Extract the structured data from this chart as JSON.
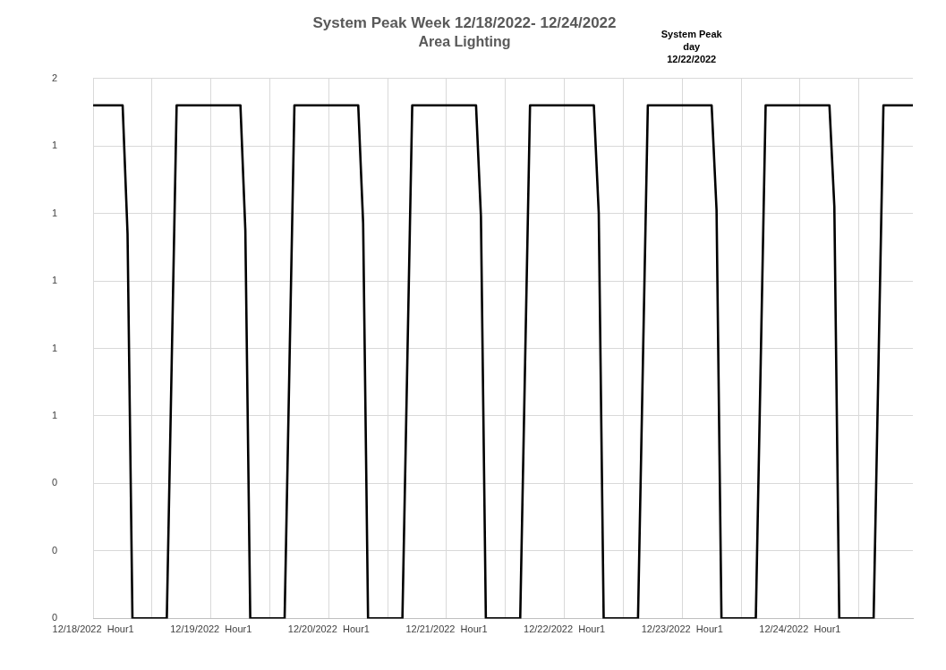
{
  "chart_data": {
    "type": "line",
    "title": "System Peak Week 12/18/2022- 12/24/2022",
    "subtitle": "Area Lighting",
    "annotations": [
      "System Peak day 12/22/2022"
    ],
    "categories": [
      "12/18/2022  Hour1",
      null,
      null,
      null,
      null,
      null,
      null,
      null,
      null,
      null,
      null,
      null,
      null,
      null,
      null,
      null,
      null,
      null,
      null,
      null,
      null,
      null,
      null,
      null,
      "12/19/2022  Hour1",
      null,
      null,
      null,
      null,
      null,
      null,
      null,
      null,
      null,
      null,
      null,
      null,
      null,
      null,
      null,
      null,
      null,
      null,
      null,
      null,
      null,
      null,
      null,
      "12/20/2022  Hour1",
      null,
      null,
      null,
      null,
      null,
      null,
      null,
      null,
      null,
      null,
      null,
      null,
      null,
      null,
      null,
      null,
      null,
      null,
      null,
      null,
      null,
      null,
      null,
      "12/21/2022  Hour1",
      null,
      null,
      null,
      null,
      null,
      null,
      null,
      null,
      null,
      null,
      null,
      null,
      null,
      null,
      null,
      null,
      null,
      null,
      null,
      null,
      null,
      null,
      null,
      "12/22/2022  Hour1",
      null,
      null,
      null,
      null,
      null,
      null,
      null,
      null,
      null,
      null,
      null,
      null,
      null,
      null,
      null,
      null,
      null,
      null,
      null,
      null,
      null,
      null,
      null,
      "12/23/2022  Hour1",
      null,
      null,
      null,
      null,
      null,
      null,
      null,
      null,
      null,
      null,
      null,
      null,
      null,
      null,
      null,
      null,
      null,
      null,
      null,
      null,
      null,
      null,
      null,
      "12/24/2022  Hour1",
      null,
      null,
      null,
      null,
      null,
      null,
      null,
      null,
      null,
      null,
      null,
      null,
      null,
      null,
      null,
      null,
      null,
      null,
      null,
      null,
      null,
      null,
      null
    ],
    "series": [
      {
        "color": "#000000",
        "values": [
          1.52,
          1.52,
          1.52,
          1.52,
          1.52,
          1.52,
          1.52,
          1.14,
          0,
          0,
          0,
          0,
          0,
          0,
          0,
          0,
          0.76,
          1.52,
          1.52,
          1.52,
          1.52,
          1.52,
          1.52,
          1.52,
          1.52,
          1.52,
          1.52,
          1.52,
          1.52,
          1.52,
          1.52,
          1.15,
          0,
          0,
          0,
          0,
          0,
          0,
          0,
          0,
          0.76,
          1.52,
          1.52,
          1.52,
          1.52,
          1.52,
          1.52,
          1.52,
          1.52,
          1.52,
          1.52,
          1.52,
          1.52,
          1.52,
          1.52,
          1.17,
          0,
          0,
          0,
          0,
          0,
          0,
          0,
          0,
          0.76,
          1.52,
          1.52,
          1.52,
          1.52,
          1.52,
          1.52,
          1.52,
          1.52,
          1.52,
          1.52,
          1.52,
          1.52,
          1.52,
          1.52,
          1.19,
          0,
          0,
          0,
          0,
          0,
          0,
          0,
          0,
          0.76,
          1.52,
          1.52,
          1.52,
          1.52,
          1.52,
          1.52,
          1.52,
          1.52,
          1.52,
          1.52,
          1.52,
          1.52,
          1.52,
          1.52,
          1.2,
          0,
          0,
          0,
          0,
          0,
          0,
          0,
          0,
          0.76,
          1.52,
          1.52,
          1.52,
          1.52,
          1.52,
          1.52,
          1.52,
          1.52,
          1.52,
          1.52,
          1.52,
          1.52,
          1.52,
          1.52,
          1.21,
          0,
          0,
          0,
          0,
          0,
          0,
          0,
          0,
          0.76,
          1.52,
          1.52,
          1.52,
          1.52,
          1.52,
          1.52,
          1.52,
          1.52,
          1.52,
          1.52,
          1.52,
          1.52,
          1.52,
          1.52,
          1.22,
          0,
          0,
          0,
          0,
          0,
          0,
          0,
          0,
          0.76,
          1.52,
          1.52,
          1.52,
          1.52,
          1.52,
          1.52,
          1.52
        ]
      }
    ],
    "ylim": [
      0,
      1.6
    ],
    "yticks": [
      {
        "value": 0,
        "label": "0"
      },
      {
        "value": 0.2,
        "label": "0"
      },
      {
        "value": 0.4,
        "label": "0"
      },
      {
        "value": 0.6,
        "label": "1"
      },
      {
        "value": 0.8,
        "label": "1"
      },
      {
        "value": 1.0,
        "label": "1"
      },
      {
        "value": 1.2,
        "label": "1"
      },
      {
        "value": 1.4,
        "label": "1"
      },
      {
        "value": 1.6,
        "label": "2"
      }
    ],
    "grid": true,
    "legend": false,
    "marker": "none",
    "line_style": "solid"
  }
}
